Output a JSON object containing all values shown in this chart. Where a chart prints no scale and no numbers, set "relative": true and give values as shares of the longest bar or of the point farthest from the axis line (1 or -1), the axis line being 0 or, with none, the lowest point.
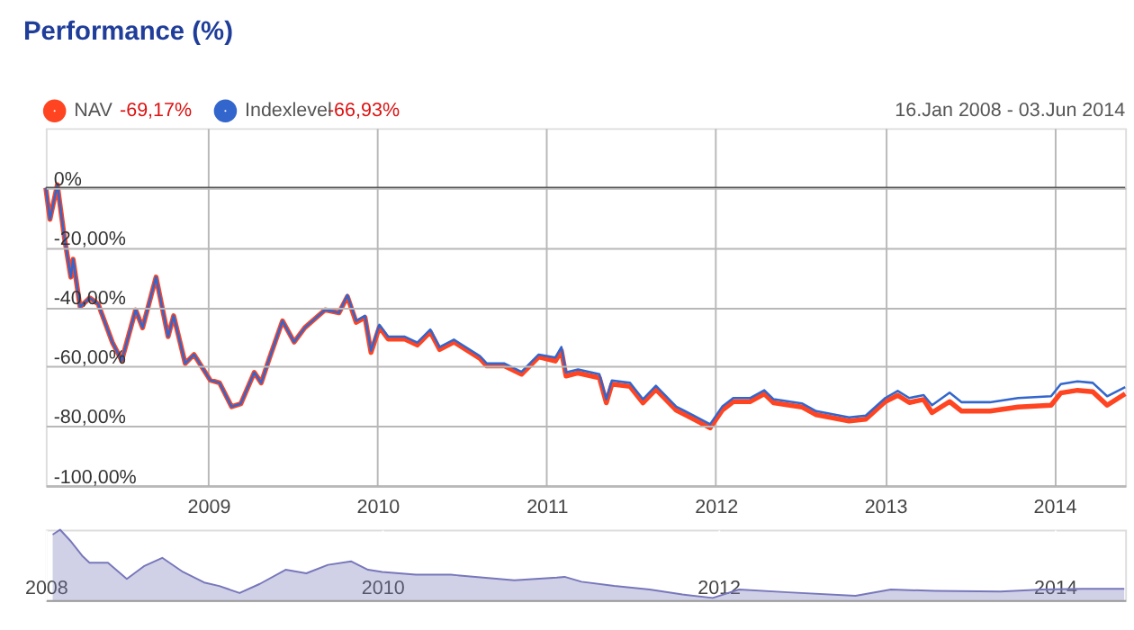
{
  "chart_data": [
    {
      "type": "line",
      "title": "Performance (%)",
      "subtitle": "16.Jan 2008 - 03.Jun 2014",
      "annotations": [
        "-69,17%",
        "-66,93%"
      ],
      "x": [
        "2008-01-16",
        "2008-01-25",
        "2008-02-10",
        "2008-02-25",
        "2008-03-10",
        "2008-03-15",
        "2008-03-30",
        "2008-04-20",
        "2008-05-08",
        "2008-06-08",
        "2008-06-28",
        "2008-07-28",
        "2008-08-12",
        "2008-09-10",
        "2008-10-06",
        "2008-10-18",
        "2008-11-12",
        "2008-12-01",
        "2009-01-05",
        "2009-01-25",
        "2009-02-20",
        "2009-03-12",
        "2009-04-10",
        "2009-04-25",
        "2009-05-12",
        "2009-06-10",
        "2009-07-05",
        "2009-07-28",
        "2009-09-10",
        "2009-10-10",
        "2009-10-28",
        "2009-11-16",
        "2009-12-05",
        "2009-12-18",
        "2010-01-05",
        "2010-01-24",
        "2010-03-01",
        "2010-03-28",
        "2010-04-25",
        "2010-05-15",
        "2010-06-15",
        "2010-08-10",
        "2010-08-25",
        "2010-10-02",
        "2010-11-08",
        "2010-12-15",
        "2011-01-20",
        "2011-02-02",
        "2011-02-12",
        "2011-03-10",
        "2011-04-25",
        "2011-05-10",
        "2011-05-22",
        "2011-06-30",
        "2011-07-28",
        "2011-08-25",
        "2011-10-08",
        "2011-11-15",
        "2011-12-20",
        "2012-01-15",
        "2012-02-08",
        "2012-03-15",
        "2012-04-15",
        "2012-05-05",
        "2012-07-05",
        "2012-08-05",
        "2012-10-15",
        "2012-11-20",
        "2013-01-01",
        "2013-01-28",
        "2013-02-22",
        "2013-03-25",
        "2013-04-12",
        "2013-05-20",
        "2013-06-15",
        "2013-08-15",
        "2013-10-15",
        "2013-12-25",
        "2014-01-15",
        "2014-02-20",
        "2014-03-25",
        "2014-04-25",
        "2014-06-03"
      ],
      "series": [
        {
          "name": "NAV",
          "color": "#ff4422",
          "values": [
            0,
            -10.6,
            1,
            -16.5,
            -30,
            -24,
            -40,
            -37,
            -39,
            -52,
            -58,
            -41,
            -47,
            -30,
            -50,
            -43,
            -59,
            -56,
            -64.6,
            -65.5,
            -73.5,
            -72.5,
            -62,
            -65.5,
            -57.6,
            -44.7,
            -51.8,
            -47,
            -41,
            -42,
            -36.5,
            -45.2,
            -43.5,
            -55.3,
            -46.8,
            -50.8,
            -50.8,
            -52.8,
            -48.4,
            -54.3,
            -51.8,
            -57.3,
            -59.8,
            -59.8,
            -62.6,
            -56.8,
            -58.2,
            -54.7,
            -63.2,
            -62.2,
            -63.8,
            -72.2,
            -65.9,
            -66.7,
            -72.2,
            -67.7,
            -74.7,
            -77.7,
            -80.6,
            -74.7,
            -71.8,
            -71.8,
            -69.2,
            -72.2,
            -73.6,
            -76.2,
            -78.3,
            -77.7,
            -71.8,
            -69.7,
            -72.1,
            -71.1,
            -75.5,
            -71.8,
            -75,
            -75,
            -73.6,
            -73,
            -68.9,
            -68,
            -68.5,
            -73,
            -69.17
          ]
        },
        {
          "name": "Indexlevel",
          "color": "#3366cc",
          "values": [
            0,
            -10.6,
            1,
            -16.5,
            -30,
            -24,
            -40,
            -37,
            -39,
            -52,
            -58,
            -41,
            -47,
            -30,
            -50,
            -43,
            -59,
            -56,
            -64.6,
            -65.5,
            -73.5,
            -72.5,
            -62,
            -65.5,
            -57.6,
            -44.7,
            -51.8,
            -47,
            -41,
            -42,
            -36,
            -44.7,
            -43,
            -54.7,
            -46,
            -50,
            -50,
            -52,
            -47.6,
            -53.5,
            -51,
            -56.5,
            -59,
            -59,
            -61.8,
            -56,
            -57,
            -53.5,
            -62,
            -61,
            -62.6,
            -71,
            -64.7,
            -65.5,
            -71,
            -66.5,
            -73.5,
            -76.5,
            -79.4,
            -73.5,
            -70.6,
            -70.6,
            -68,
            -71,
            -72.4,
            -75,
            -77.1,
            -76.5,
            -70.6,
            -68.2,
            -70.6,
            -69.6,
            -73,
            -68.8,
            -72,
            -72,
            -70.6,
            -70,
            -65.9,
            -65,
            -65.5,
            -70,
            -66.93
          ]
        }
      ],
      "xlim": [
        "2008-01-16",
        "2014-06-03"
      ],
      "xticks": [
        {
          "value": "2009-01-01",
          "label": "2009"
        },
        {
          "value": "2010-01-01",
          "label": "2010"
        },
        {
          "value": "2011-01-01",
          "label": "2011"
        },
        {
          "value": "2012-01-01",
          "label": "2012"
        },
        {
          "value": "2013-01-01",
          "label": "2013"
        },
        {
          "value": "2014-01-01",
          "label": "2014"
        }
      ],
      "ylim": [
        -100,
        20
      ],
      "yticks": [
        {
          "value": 0,
          "label": "0%"
        },
        {
          "value": -20,
          "label": "-20,00%"
        },
        {
          "value": -40,
          "label": "-40,00%"
        },
        {
          "value": -60,
          "label": "-60,00%"
        },
        {
          "value": -80,
          "label": "-80,00%"
        },
        {
          "value": -100,
          "label": "-100,00%"
        }
      ],
      "ref_lines": [
        {
          "axis": "y",
          "value": 0,
          "color": "#555555"
        }
      ],
      "grid": true,
      "legend": "top left"
    },
    {
      "type": "area",
      "relative": true,
      "x": [
        "2008-01-16",
        "2008-02-01",
        "2008-02-25",
        "2008-03-20",
        "2008-04-05",
        "2008-05-15",
        "2008-06-25",
        "2008-08-01",
        "2008-09-10",
        "2008-10-25",
        "2008-12-10",
        "2009-01-12",
        "2009-02-25",
        "2009-04-10",
        "2009-06-05",
        "2009-07-20",
        "2009-09-05",
        "2009-10-25",
        "2009-12-01",
        "2010-01-01",
        "2010-03-15",
        "2010-05-30",
        "2010-10-15",
        "2011-01-15",
        "2011-02-01",
        "2011-03-10",
        "2011-05-20",
        "2011-08-05",
        "2011-10-15",
        "2011-12-20",
        "2012-02-15",
        "2012-06-01",
        "2012-10-25",
        "2013-01-10",
        "2013-04-15",
        "2013-09-05",
        "2013-12-05",
        "2014-03-01",
        "2014-06-01"
      ],
      "series": [
        {
          "color": "#7777bb",
          "values": [
            0.93,
            1,
            0.83,
            0.63,
            0.53,
            0.53,
            0.3,
            0.48,
            0.6,
            0.4,
            0.25,
            0.2,
            0.1,
            0.23,
            0.43,
            0.38,
            0.5,
            0.55,
            0.43,
            0.4,
            0.36,
            0.36,
            0.28,
            0.32,
            0.33,
            0.26,
            0.2,
            0.15,
            0.08,
            0.03,
            0.15,
            0.11,
            0.06,
            0.15,
            0.13,
            0.12,
            0.15,
            0.16,
            0.16
          ]
        }
      ],
      "xlim": [
        "2008-01-01",
        "2014-06-03"
      ],
      "xticks": [
        {
          "value": "2008-01-01",
          "label": "2008"
        },
        {
          "value": "2010-01-01",
          "label": "2010"
        },
        {
          "value": "2012-01-01",
          "label": "2012"
        },
        {
          "value": "2014-01-01",
          "label": "2014"
        }
      ],
      "grid": "x",
      "tick_labels": "x"
    }
  ]
}
